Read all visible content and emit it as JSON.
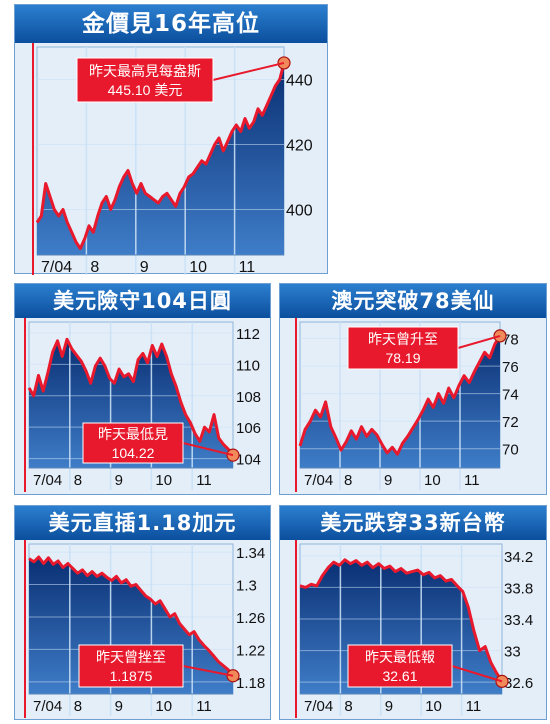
{
  "colors": {
    "title_bar": "#0b5aa8",
    "plot_top": "#0a2f73",
    "plot_bottom": "#3f7dc8",
    "line": "#e8192c",
    "callout": "#e8192c",
    "callout_text": "#ffffff",
    "gridline": "#c9e0f5",
    "panel_background": "#e4eef9"
  },
  "chart_data": [
    {
      "type": "area",
      "title": "金價見16年高位",
      "x_tick_labels": [
        "7/04",
        "8",
        "9",
        "10",
        "11"
      ],
      "y_ticks": [
        400,
        420,
        440
      ],
      "ylim": [
        386,
        450
      ],
      "grid": true,
      "callout": {
        "line1": "昨天最高見每盎斯",
        "line2": "445.10 美元"
      },
      "series": [
        {
          "values": [
            396,
            398,
            408,
            404,
            400,
            398,
            400,
            396,
            393,
            390,
            388,
            391,
            395,
            393,
            398,
            402,
            404,
            400,
            403,
            407,
            410,
            412,
            408,
            405,
            408,
            405,
            404,
            403,
            402,
            404,
            405,
            403,
            401,
            405,
            407,
            410,
            411,
            413,
            415,
            414,
            417,
            420,
            422,
            418,
            421,
            424,
            426,
            424,
            428,
            425,
            427,
            431,
            429,
            432,
            435,
            438,
            440,
            445.1
          ]
        }
      ]
    },
    {
      "type": "area",
      "title": "美元險守104日圓",
      "x_tick_labels": [
        "7/04",
        "8",
        "9",
        "10",
        "11"
      ],
      "y_ticks": [
        104,
        106,
        108,
        110,
        112
      ],
      "ylim": [
        103.4,
        112.7
      ],
      "grid": true,
      "callout": {
        "line1": "昨天最低見",
        "line2": "104.22"
      },
      "series": [
        {
          "values": [
            108.5,
            108.0,
            109.3,
            108.3,
            109.5,
            110.8,
            111.5,
            110.5,
            111.6,
            111.0,
            110.6,
            110.2,
            109.6,
            108.8,
            109.9,
            110.4,
            109.9,
            109.1,
            108.8,
            109.7,
            109.2,
            109.4,
            108.9,
            110.3,
            110.7,
            110.1,
            111.2,
            110.5,
            111.3,
            110.5,
            109.4,
            108.6,
            107.6,
            106.8,
            106.3,
            105.6,
            105.1,
            106.0,
            105.7,
            106.8,
            105.3,
            104.9,
            104.6,
            104.22
          ]
        }
      ]
    },
    {
      "type": "area",
      "title": "澳元突破78美仙",
      "x_tick_labels": [
        "7/04",
        "8",
        "9",
        "10",
        "11"
      ],
      "y_ticks": [
        70,
        72,
        74,
        76,
        78
      ],
      "ylim": [
        68.6,
        79.2
      ],
      "grid": true,
      "callout": {
        "line1": "昨天曾升至",
        "line2": "78.19"
      },
      "series": [
        {
          "values": [
            70.2,
            71.4,
            72.0,
            72.8,
            72.3,
            73.4,
            71.6,
            70.8,
            69.9,
            70.5,
            71.3,
            70.7,
            71.6,
            70.9,
            71.4,
            71.0,
            70.3,
            69.7,
            70.1,
            69.6,
            70.4,
            70.9,
            71.5,
            72.1,
            72.8,
            73.6,
            73.0,
            74.0,
            73.3,
            74.4,
            73.7,
            74.6,
            75.3,
            74.8,
            75.6,
            76.3,
            77.0,
            76.6,
            77.6,
            78.19
          ]
        }
      ]
    },
    {
      "type": "area",
      "title": "美元直插1.18加元",
      "x_tick_labels": [
        "7/04",
        "8",
        "9",
        "10",
        "11"
      ],
      "y_ticks": [
        1.18,
        1.22,
        1.26,
        1.3,
        1.34
      ],
      "ylim": [
        1.165,
        1.35
      ],
      "grid": true,
      "callout": {
        "line1": "昨天曾挫至",
        "line2": "1.1875"
      },
      "series": [
        {
          "values": [
            1.332,
            1.328,
            1.334,
            1.326,
            1.333,
            1.325,
            1.329,
            1.321,
            1.326,
            1.32,
            1.314,
            1.318,
            1.311,
            1.316,
            1.31,
            1.314,
            1.309,
            1.305,
            1.31,
            1.302,
            1.306,
            1.298,
            1.3,
            1.293,
            1.286,
            1.282,
            1.276,
            1.28,
            1.27,
            1.26,
            1.264,
            1.252,
            1.245,
            1.238,
            1.242,
            1.232,
            1.225,
            1.219,
            1.212,
            1.205,
            1.2,
            1.195,
            1.1875
          ]
        }
      ]
    },
    {
      "type": "area",
      "title": "美元跌穿33新台幣",
      "x_tick_labels": [
        "7/04",
        "8",
        "9",
        "10",
        "11"
      ],
      "y_ticks": [
        32.6,
        33.0,
        33.4,
        33.8,
        34.2
      ],
      "ylim": [
        32.45,
        34.35
      ],
      "grid": true,
      "callout": {
        "line1": "昨天最低報",
        "line2": "32.61"
      },
      "series": [
        {
          "values": [
            33.82,
            33.8,
            33.84,
            33.82,
            33.95,
            34.05,
            34.12,
            34.08,
            34.15,
            34.1,
            34.14,
            34.08,
            34.12,
            34.05,
            34.1,
            34.04,
            34.07,
            34.0,
            34.04,
            33.98,
            34.0,
            34.02,
            33.96,
            33.99,
            33.92,
            33.95,
            33.88,
            33.9,
            33.82,
            33.75,
            33.55,
            33.25,
            33.0,
            33.05,
            32.85,
            32.72,
            32.61
          ]
        }
      ]
    }
  ]
}
